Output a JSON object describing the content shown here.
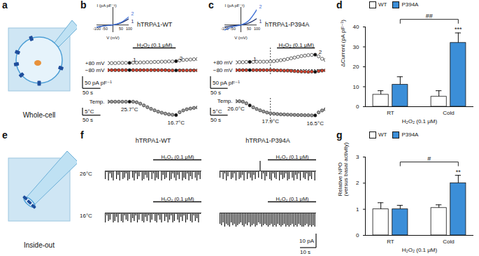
{
  "chart_data": [
    {
      "type": "cell",
      "panel": "a",
      "label": "Whole-cell"
    },
    {
      "type": "timecourse",
      "panel": "b",
      "title": "hTRPA1-WT",
      "x": [
        0,
        10,
        20,
        30,
        40,
        50,
        60,
        70,
        80,
        90,
        100,
        110,
        120,
        130,
        140,
        150,
        160,
        170,
        180,
        190,
        200,
        210,
        220,
        230,
        240,
        250
      ],
      "xlim": [
        0,
        250
      ],
      "ylim": [
        -20,
        90
      ],
      "tick_labels": false,
      "baseline": 0,
      "series": [
        {
          "name": "+80 mV",
          "color": "#ffffff",
          "marker": "circle",
          "values": [
            27,
            27,
            27,
            28,
            28,
            28,
            28,
            29,
            29,
            30,
            30,
            31,
            31,
            32,
            32,
            33,
            33,
            34,
            34,
            35,
            38,
            40,
            41,
            42,
            43,
            44
          ]
        },
        {
          "name": "−80 mV",
          "color": "#d8432e",
          "marker": "circle",
          "values": [
            -2,
            -2,
            -2,
            -2,
            -2,
            -2,
            -2,
            -2,
            -2,
            -2,
            -2,
            -2,
            -2,
            -2,
            -2,
            -2,
            -2,
            -3,
            -3,
            -3,
            -3,
            -3,
            -3,
            -3,
            -3,
            -3
          ]
        }
      ],
      "markers": [
        {
          "x": 60,
          "label": "1"
        },
        {
          "x": 190,
          "label": "2"
        }
      ],
      "treatment": {
        "label": "H₂O₂ (0.1 μM)",
        "start": 70,
        "end": 190
      },
      "scale_bars": {
        "vertical": {
          "value": 50,
          "label": "50 pA pF⁻¹"
        },
        "horizontal": {
          "value": 50,
          "label": "50 s"
        }
      },
      "temperature": {
        "name": "Temp.",
        "color": "#9e9e9e",
        "marker": "circle",
        "ylim": [
          12,
          28
        ],
        "values": [
          25.7,
          25.7,
          25.7,
          25.7,
          25.7,
          25.7,
          25.7,
          25.7,
          25.3,
          24.4,
          23.2,
          22.0,
          20.9,
          19.9,
          19.0,
          18.3,
          17.7,
          17.2,
          16.9,
          16.7,
          18.6,
          19.8,
          20.6,
          21.1,
          21.5,
          21.8
        ],
        "annotations": [
          {
            "x": 60,
            "label": "25.7°C"
          },
          {
            "x": 190,
            "label": "16.7°C"
          }
        ],
        "scale_bars": {
          "vertical": {
            "value": 5,
            "label": "5°C"
          },
          "horizontal": {
            "value": 50,
            "label": "50 s"
          }
        }
      },
      "inset": {
        "type": "line",
        "xlabel": "V (mV)",
        "ylabel": "I (pA pF⁻¹)",
        "tick_labels": "x",
        "x": [
          -100,
          -50,
          0,
          50,
          100
        ],
        "xlim": [
          -100,
          100
        ],
        "xticks": [
          -100,
          -50,
          50,
          100
        ],
        "ylim": [
          -30,
          70
        ],
        "series": [
          {
            "name": "1",
            "color": "#1c2f6b",
            "values": [
              -8,
              -3,
              0,
              8,
              25
            ]
          },
          {
            "name": "2",
            "color": "#3d6fd6",
            "values": [
              -9,
              -3,
              0,
              10,
              33
            ]
          }
        ]
      }
    },
    {
      "type": "timecourse",
      "panel": "c",
      "title": "hTRPA1-P394A",
      "x": [
        0,
        10,
        20,
        30,
        40,
        50,
        60,
        70,
        80,
        90,
        100,
        110,
        120,
        130,
        140,
        150,
        160,
        170,
        180,
        190,
        200,
        210,
        220,
        230,
        240,
        250,
        260
      ],
      "xlim": [
        0,
        260
      ],
      "ylim": [
        -20,
        90
      ],
      "tick_labels": false,
      "baseline": 0,
      "guide_x": 100,
      "series": [
        {
          "name": "+80 mV",
          "color": "#ffffff",
          "marker": "circle",
          "values": [
            30,
            31,
            31,
            32,
            32,
            32,
            33,
            33,
            33,
            33,
            34,
            35,
            37,
            39,
            41,
            44,
            47,
            50,
            53,
            56,
            58,
            60,
            61,
            62,
            55,
            45,
            40
          ]
        },
        {
          "name": "−80 mV",
          "color": "#d8432e",
          "marker": "circle",
          "values": [
            -2,
            -2,
            -2,
            -2,
            -2,
            -2,
            -2,
            -2,
            -2,
            -2,
            -2,
            -2,
            -3,
            -3,
            -4,
            -4,
            -5,
            -6,
            -7,
            -8,
            -8,
            -9,
            -8,
            -9,
            -6,
            -4,
            -3
          ]
        }
      ],
      "markers": [
        {
          "x": 40,
          "label": "1"
        },
        {
          "x": 230,
          "label": "2"
        }
      ],
      "treatment": {
        "label": "H₂O₂ (0.1 μM)",
        "start": 120,
        "end": 230
      },
      "scale_bars": {
        "vertical": {
          "value": 50,
          "label": "50 pA pF⁻¹"
        },
        "horizontal": {
          "value": 50,
          "label": "50 s"
        }
      },
      "temperature": {
        "name": "Temp.",
        "color": "#9e9e9e",
        "marker": "circle",
        "ylim": [
          12,
          28
        ],
        "values": [
          26.0,
          26.0,
          25.7,
          24.6,
          23.2,
          21.9,
          20.8,
          19.9,
          19.1,
          18.4,
          17.9,
          17.6,
          17.4,
          17.2,
          17.1,
          17.0,
          16.9,
          16.8,
          16.7,
          16.7,
          16.6,
          16.6,
          16.5,
          16.5,
          18.5,
          19.8,
          20.6
        ],
        "annotations": [
          {
            "x": 0,
            "label": "26.0°C"
          },
          {
            "x": 100,
            "label": "17.9°C"
          },
          {
            "x": 230,
            "label": "16.5°C"
          }
        ],
        "scale_bars": {
          "vertical": {
            "value": 5,
            "label": "5°C"
          },
          "horizontal": {
            "value": 50,
            "label": "50 s"
          }
        }
      },
      "inset": {
        "type": "line",
        "xlabel": "V (mV)",
        "ylabel": "I (pA pF⁻¹)",
        "tick_labels": "x",
        "x": [
          -100,
          -50,
          0,
          50,
          100
        ],
        "xlim": [
          -100,
          100
        ],
        "xticks": [
          -100,
          -50,
          50,
          100
        ],
        "ylim": [
          -30,
          70
        ],
        "series": [
          {
            "name": "1",
            "color": "#1c2f6b",
            "values": [
              -8,
              -3,
              0,
              8,
              26
            ]
          },
          {
            "name": "2",
            "color": "#3d6fd6",
            "values": [
              -20,
              -7,
              0,
              18,
              62
            ]
          }
        ]
      }
    },
    {
      "type": "bar",
      "panel": "d",
      "ylabel": "ΔCurrent (pA pF⁻¹)",
      "xlabel": "H₂O₂ (0.1 μM)",
      "categories": [
        "RT",
        "Cold"
      ],
      "ylim": [
        0,
        40
      ],
      "yticks": [
        0,
        10,
        20,
        30,
        40
      ],
      "legend": "top left",
      "series": [
        {
          "name": "WT",
          "color": "#ffffff",
          "values": [
            6,
            5
          ],
          "errors": [
            2,
            3
          ]
        },
        {
          "name": "P394A",
          "color": "#3b8ed8",
          "values": [
            11,
            32
          ],
          "errors": [
            4,
            5
          ],
          "stars": [
            null,
            "***"
          ]
        }
      ],
      "comparisons": [
        {
          "series": "P394A",
          "from": "RT",
          "to": "Cold",
          "label": "##"
        }
      ]
    },
    {
      "type": "patch",
      "panel": "e",
      "label": "Inside-out"
    },
    {
      "type": "channels",
      "panel": "f",
      "color": "#111111",
      "columns": [
        "hTRPA1-WT",
        "hTRPA1-P394A"
      ],
      "rows": [
        "26°C",
        "16°C"
      ],
      "x": [
        0,
        1,
        2,
        3,
        4,
        5,
        6,
        7,
        8,
        9,
        10,
        11,
        12,
        13,
        14,
        15,
        16,
        17,
        18,
        19,
        20,
        21,
        22,
        23,
        24,
        25,
        26,
        27,
        28,
        29,
        30,
        31,
        32,
        33,
        34,
        35,
        36,
        37,
        38,
        39,
        40,
        41,
        42,
        43,
        44,
        45,
        46,
        47,
        48,
        49,
        50,
        51,
        52,
        53,
        54,
        55,
        56,
        57,
        58,
        59
      ],
      "xlim": [
        0,
        60
      ],
      "ylim": [
        -12,
        8
      ],
      "tick_labels": false,
      "baseline": 0,
      "treatment": {
        "label": "H₂O₂ (0.1 μM)",
        "start": 30,
        "end": 60
      },
      "scale_bars": {
        "vertical": {
          "value": 10,
          "label": "10 pA"
        },
        "horizontal": {
          "value": 10,
          "label": "10 s"
        }
      },
      "traces": [
        {
          "column": "hTRPA1-WT",
          "row": "26°C",
          "values": [
            -6,
            -1,
            -7,
            -2,
            -5,
            -7,
            0,
            -6,
            -3,
            -7,
            -1,
            -6,
            -5,
            -2,
            -7,
            -6,
            0,
            -5,
            -7,
            -2,
            -6,
            -4,
            -1,
            -7,
            -6,
            -3,
            -5,
            -7,
            -1,
            -6,
            -2,
            -7,
            -5,
            -6,
            0,
            -7,
            -3,
            -6,
            -5,
            -1,
            -7,
            -6,
            -2,
            -5,
            -7,
            -3,
            -6,
            -1,
            -7,
            -5,
            -6,
            -2,
            -7,
            -4,
            -6,
            -1,
            -5,
            -7,
            -3,
            -6
          ]
        },
        {
          "column": "hTRPA1-P394A",
          "row": "26°C",
          "values": [
            -5,
            -1,
            -6,
            -2,
            -7,
            -4,
            -1,
            -6,
            -5,
            -2,
            -7,
            -1,
            -6,
            -5,
            -3,
            -7,
            -1,
            -6,
            -2,
            -5,
            -7,
            -3,
            -6,
            -1,
            -5,
            7,
            -6,
            -2,
            -7,
            -4,
            -1,
            -6,
            -7,
            -2,
            -5,
            -6,
            -1,
            -7,
            -3,
            -6,
            -5,
            -2,
            -7,
            -6,
            -1,
            -5,
            -7,
            -3,
            -6,
            -2,
            -7,
            -1,
            -5,
            -6,
            -2,
            -7,
            -4,
            -6,
            -1,
            -7
          ]
        },
        {
          "column": "hTRPA1-WT",
          "row": "16°C",
          "values": [
            -7,
            -2,
            -6,
            -5,
            -1,
            -7,
            -6,
            -3,
            -7,
            -1,
            -6,
            -7,
            -2,
            -5,
            -6,
            -1,
            -7,
            -4,
            -6,
            -2,
            -7,
            -5,
            -1,
            -6,
            -7,
            -3,
            -6,
            -2,
            -7,
            -5,
            -1,
            -6,
            -7,
            -2,
            -5,
            -7,
            -1,
            -6,
            -3,
            -7,
            -5,
            -2,
            -7,
            -6,
            -1,
            -5,
            -7,
            -3,
            -6,
            -2,
            -7,
            -5,
            -1,
            -6,
            -7,
            -2,
            -6,
            -4,
            -7,
            -1
          ]
        },
        {
          "column": "hTRPA1-P394A",
          "row": "16°C",
          "values": [
            -8,
            -9,
            -7,
            -10,
            -8,
            -9,
            -10,
            -7,
            -9,
            -8,
            -10,
            -9,
            -8,
            -7,
            -9,
            -10,
            -8,
            -9,
            -7,
            -10,
            -9,
            -8,
            -10,
            -9,
            -7,
            -8,
            -10,
            -9,
            -8,
            -9,
            -10,
            -9,
            -8,
            -10,
            -9,
            -10,
            -8,
            -9,
            -10,
            -9,
            -8,
            -10,
            -9,
            -10,
            -9,
            -8,
            -10,
            -9,
            -10,
            -8,
            -9,
            -10,
            -10,
            -9,
            -8,
            -10,
            -9,
            -10,
            -9,
            -10
          ]
        }
      ]
    },
    {
      "type": "bar",
      "panel": "g",
      "ylabel": [
        "Relative NPO",
        "(versus basal activity)"
      ],
      "xlabel": "H₂O₂ (0.1 μM)",
      "categories": [
        "RT",
        "Cold"
      ],
      "ylim": [
        0,
        3
      ],
      "yticks": [
        0,
        1,
        2,
        3
      ],
      "legend": "top left",
      "series": [
        {
          "name": "WT",
          "color": "#ffffff",
          "values": [
            1.0,
            1.05
          ],
          "errors": [
            0.25,
            0.12
          ]
        },
        {
          "name": "P394A",
          "color": "#3b8ed8",
          "values": [
            1.0,
            2.0
          ],
          "errors": [
            0.15,
            0.3
          ],
          "stars": [
            null,
            "**"
          ]
        }
      ],
      "comparisons": [
        {
          "series": "P394A",
          "from": "RT",
          "to": "Cold",
          "label": "#"
        }
      ]
    }
  ]
}
